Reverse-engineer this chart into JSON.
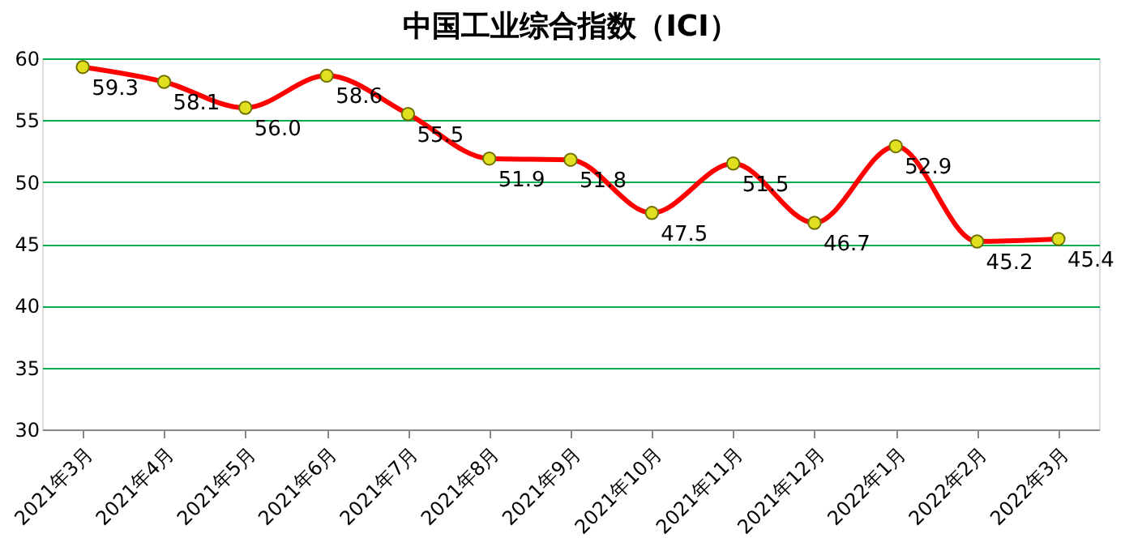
{
  "chart_data": {
    "type": "line",
    "title": "中国工业综合指数（ICI）",
    "categories": [
      "2021年3月",
      "2021年4月",
      "2021年5月",
      "2021年6月",
      "2021年7月",
      "2021年8月",
      "2021年9月",
      "2021年10月",
      "2021年11月",
      "2021年12月",
      "2022年1月",
      "2022年2月",
      "2022年3月"
    ],
    "series": [
      {
        "color": "#ff0000",
        "values": [
          59.3,
          58.1,
          56.0,
          58.6,
          55.5,
          51.9,
          51.8,
          47.5,
          51.5,
          46.7,
          52.9,
          45.2,
          45.4
        ],
        "value_labels": [
          "59.3",
          "58.1",
          "56.0",
          "58.6",
          "55.5",
          "51.9",
          "51.8",
          "47.5",
          "51.5",
          "46.7",
          "52.9",
          "45.2",
          "45.4"
        ]
      }
    ],
    "ylim": [
      30,
      60
    ],
    "yticks": [
      30,
      35,
      40,
      45,
      50,
      55,
      60
    ],
    "grid": "y",
    "marker": "circle",
    "line_style": "solid"
  }
}
